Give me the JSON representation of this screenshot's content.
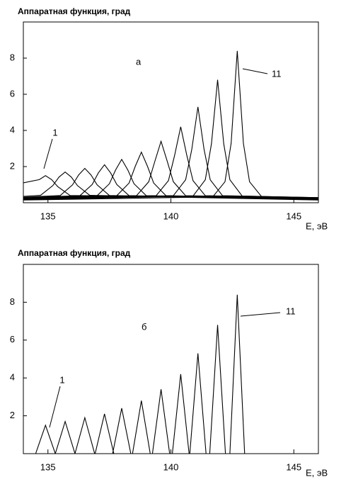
{
  "chart_data": [
    {
      "type": "line",
      "y_label": "Аппаратная функция,  град",
      "x_label": "E, эВ",
      "panel_label": "а",
      "annotations": [
        "1",
        "11"
      ],
      "color": "#000000",
      "xlim": [
        134,
        146
      ],
      "ylim": [
        0,
        10
      ],
      "xticks": [
        135,
        140,
        145
      ],
      "yticks": [
        2,
        4,
        6,
        8
      ],
      "series": [
        {
          "x": [
            134,
            134.65,
            134.9,
            135.15,
            135.4,
            135.9,
            146
          ],
          "values": [
            1.1,
            1.28,
            1.5,
            1.28,
            0.89,
            0.4,
            0.25
          ]
        },
        {
          "x": [
            134,
            134.7,
            135.2,
            135.45,
            135.7,
            135.95,
            136.2,
            136.7,
            146
          ],
          "values": [
            0.35,
            0.41,
            0.95,
            1.42,
            1.7,
            1.42,
            0.95,
            0.41,
            0.15
          ]
        },
        {
          "x": [
            134,
            135.5,
            136,
            136.25,
            136.5,
            136.75,
            137,
            137.5,
            146
          ],
          "values": [
            0.3,
            0.4,
            0.99,
            1.54,
            1.9,
            1.54,
            0.99,
            0.4,
            0.17
          ]
        },
        {
          "x": [
            134,
            136.3,
            136.8,
            137.05,
            137.3,
            137.55,
            137.8,
            138.3,
            146
          ],
          "values": [
            0.28,
            0.39,
            1.01,
            1.65,
            2.1,
            1.65,
            1.01,
            0.39,
            0.19
          ]
        },
        {
          "x": [
            134,
            137,
            137.5,
            137.75,
            138,
            138.25,
            138.5,
            139,
            146
          ],
          "values": [
            0.26,
            0.39,
            1.05,
            1.81,
            2.4,
            1.81,
            1.05,
            0.39,
            0.21
          ]
        },
        {
          "x": [
            134,
            137.8,
            138.3,
            138.55,
            138.8,
            139.05,
            139.3,
            139.8,
            146
          ],
          "values": [
            0.24,
            0.39,
            1.09,
            2.01,
            2.8,
            2.01,
            1.09,
            0.39,
            0.23
          ]
        },
        {
          "x": [
            134,
            138.6,
            139.1,
            139.35,
            139.6,
            139.85,
            140.1,
            140.6,
            146
          ],
          "values": [
            0.22,
            0.39,
            1.16,
            2.3,
            3.4,
            2.3,
            1.16,
            0.39,
            0.25
          ]
        },
        {
          "x": [
            134,
            139.4,
            139.9,
            140.15,
            140.4,
            140.65,
            140.9,
            141.4,
            146
          ],
          "values": [
            0.2,
            0.39,
            1.22,
            2.61,
            4.2,
            2.61,
            1.22,
            0.39,
            0.27
          ]
        },
        {
          "x": [
            134,
            140.1,
            140.6,
            140.85,
            141.1,
            141.35,
            141.6,
            142.1,
            146
          ],
          "values": [
            0.18,
            0.39,
            1.27,
            2.95,
            5.3,
            2.95,
            1.27,
            0.39,
            0.28
          ]
        },
        {
          "x": [
            134,
            140.9,
            141.4,
            141.65,
            141.9,
            142.15,
            142.4,
            142.9,
            146
          ],
          "values": [
            0.16,
            0.37,
            1.27,
            3.26,
            6.8,
            3.26,
            1.27,
            0.37,
            0.28
          ]
        },
        {
          "x": [
            134,
            141.7,
            142.2,
            142.45,
            142.7,
            142.95,
            143.2,
            143.7,
            146
          ],
          "values": [
            0.15,
            0.32,
            1.16,
            3.28,
            8.4,
            3.28,
            1.16,
            0.32,
            0.26
          ]
        }
      ]
    },
    {
      "type": "line",
      "y_label": "Аппаратная функция,  град",
      "x_label": "E, эВ",
      "panel_label": "б",
      "annotations": [
        "1",
        "11"
      ],
      "color": "#000000",
      "xlim": [
        134,
        146
      ],
      "ylim": [
        0,
        10
      ],
      "xticks": [
        135,
        140,
        145
      ],
      "yticks": [
        2,
        4,
        6,
        8
      ],
      "series": [
        {
          "x": [
            134.5,
            134.9,
            135.3
          ],
          "values": [
            0,
            1.5,
            0
          ]
        },
        {
          "x": [
            135.3,
            135.7,
            136.1
          ],
          "values": [
            0,
            1.7,
            0
          ]
        },
        {
          "x": [
            136.1,
            136.5,
            136.9
          ],
          "values": [
            0,
            1.9,
            0
          ]
        },
        {
          "x": [
            136.92,
            137.3,
            137.68
          ],
          "values": [
            0,
            2.1,
            0
          ]
        },
        {
          "x": [
            137.63,
            138,
            138.37
          ],
          "values": [
            0,
            2.4,
            0
          ]
        },
        {
          "x": [
            138.44,
            138.8,
            139.16
          ],
          "values": [
            0,
            2.8,
            0
          ]
        },
        {
          "x": [
            139.25,
            139.6,
            139.95
          ],
          "values": [
            0,
            3.4,
            0
          ]
        },
        {
          "x": [
            140.06,
            140.4,
            140.74
          ],
          "values": [
            0,
            4.2,
            0
          ]
        },
        {
          "x": [
            140.77,
            141.1,
            141.43
          ],
          "values": [
            0,
            5.3,
            0
          ]
        },
        {
          "x": [
            141.58,
            141.9,
            142.22
          ],
          "values": [
            0,
            6.8,
            0
          ]
        },
        {
          "x": [
            142.4,
            142.7,
            143.0
          ],
          "values": [
            0,
            8.4,
            0
          ]
        }
      ]
    }
  ]
}
